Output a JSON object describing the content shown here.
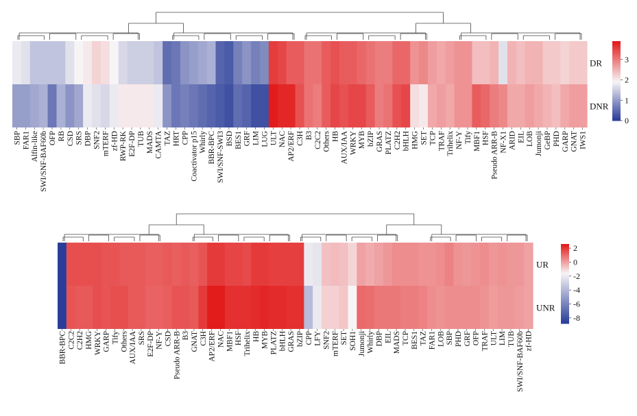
{
  "chart_data": [
    {
      "type": "heatmap",
      "rows": [
        "DR",
        "DNR"
      ],
      "categories": [
        "SBP",
        "FAR1",
        "Alfin-like",
        "SWI/SNF-BAF60b",
        "OFP",
        "RB",
        "CSD",
        "SRS",
        "DBP",
        "SNF2",
        "mTERF",
        "zf-HD",
        "RWP-RK",
        "E2F-DP",
        "TUB",
        "MADS",
        "CAMTA",
        "TAZ",
        "HRT",
        "CPP",
        "Coactivator p15",
        "Whirly",
        "BBR-BPC",
        "SWI/SNF-SWI3",
        "BSD",
        "BES1",
        "GRF",
        "LIM",
        "LUG",
        "ULT",
        "NAC",
        "AP2/ERF",
        "C3H",
        "B3",
        "C2C2",
        "Others",
        "HB",
        "AUX/IAA",
        "WRKY",
        "MYB",
        "bZIP",
        "GRAS",
        "PLATZ",
        "C2H2",
        "bHLH",
        "HMG",
        "SET",
        "TCP",
        "TRAF",
        "Trihelix",
        "NF-Y",
        "Tify",
        "MBF1",
        "HSF",
        "Pseudo ARR-B",
        "NF-X1",
        "ARID",
        "EIL",
        "LOB",
        "Jumonji",
        "GeBP",
        "PHD",
        "GARP",
        "GNAT",
        "IWS1"
      ],
      "series": [
        {
          "name": "DR",
          "values": [
            1.8,
            1.7,
            1.4,
            1.4,
            1.4,
            1.4,
            1.7,
            1.9,
            2.0,
            2.2,
            2.1,
            1.9,
            1.6,
            1.5,
            1.5,
            1.5,
            1.4,
            0.5,
            0.6,
            0.9,
            1.0,
            1.1,
            1.2,
            0.4,
            0.3,
            0.7,
            0.9,
            0.7,
            0.8,
            3.6,
            3.5,
            3.3,
            3.3,
            3.1,
            3.1,
            3.3,
            3.4,
            3.3,
            3.3,
            3.2,
            3.1,
            3.0,
            3.0,
            3.2,
            3.2,
            2.8,
            2.9,
            2.7,
            2.6,
            2.7,
            2.8,
            2.8,
            2.4,
            2.4,
            2.5,
            1.7,
            2.5,
            2.4,
            2.5,
            2.5,
            2.3,
            2.3,
            2.2,
            2.3,
            2.3
          ]
        },
        {
          "name": "DNR",
          "values": [
            1.0,
            1.0,
            1.1,
            1.2,
            0.6,
            1.2,
            0.9,
            1.1,
            1.8,
            1.7,
            1.6,
            1.8,
            2.0,
            2.0,
            2.0,
            2.0,
            1.8,
            0.9,
            0.6,
            0.7,
            0.6,
            0.5,
            0.4,
            0.3,
            0.2,
            0.5,
            0.4,
            0.2,
            0.2,
            3.9,
            3.8,
            3.8,
            3.4,
            3.1,
            3.0,
            3.3,
            3.5,
            3.4,
            3.5,
            3.5,
            3.3,
            3.0,
            3.1,
            3.4,
            3.5,
            2.1,
            2.0,
            2.6,
            2.7,
            2.6,
            2.8,
            2.8,
            3.3,
            3.2,
            3.0,
            2.9,
            2.6,
            2.6,
            2.7,
            2.6,
            2.5,
            2.4,
            2.6,
            2.7,
            2.7
          ]
        }
      ],
      "colorbar": {
        "ticks": [
          0,
          1,
          2,
          3
        ],
        "range": [
          0,
          3.9
        ]
      },
      "colors": {
        "low": "#2a3e99",
        "mid": "#f7f4f6",
        "high": "#e21b1b"
      }
    },
    {
      "type": "heatmap",
      "rows": [
        "UR",
        "UNR"
      ],
      "categories": [
        "BBR-BPC",
        "C2C2",
        "C2H2",
        "HMG",
        "WRKY",
        "GARP",
        "Tify",
        "Others",
        "AUX/IAA",
        "SRS",
        "E2F-DP",
        "NF-Y",
        "CSD",
        "Pseudo ARR-B",
        "B3",
        "GNAT",
        "C3H",
        "AP2/ERF",
        "NAC",
        "MBF1",
        "HSF",
        "Trihelix",
        "HB",
        "MYB",
        "PLATZ",
        "bHLH",
        "GRAS",
        "bZIP",
        "CPP",
        "LFY",
        "SNF2",
        "mTERF",
        "SET",
        "SOH1",
        "Jumonji",
        "Whirly",
        "DBP",
        "EIL",
        "MADS",
        "TCP",
        "BES1",
        "TAZ",
        "FAR1",
        "LOB",
        "SBP",
        "PHD",
        "GRF",
        "OFP",
        "TRAF",
        "ULT",
        "LIM",
        "TUB",
        "SWI/SNF-BAF60b",
        "zf-HD"
      ],
      "series": [
        {
          "name": "UR",
          "values": [
            -8.8,
            1.6,
            1.6,
            1.6,
            1.6,
            1.5,
            1.5,
            1.4,
            1.4,
            1.4,
            1.3,
            1.3,
            1.4,
            1.3,
            1.4,
            1.3,
            1.5,
            2.0,
            2.0,
            1.8,
            1.8,
            1.7,
            2.0,
            2.0,
            1.9,
            1.9,
            1.9,
            1.9,
            -2.0,
            -2.2,
            -0.6,
            -0.5,
            -0.6,
            -1.0,
            0.0,
            -0.2,
            0.0,
            0.2,
            0.4,
            0.4,
            0.4,
            0.3,
            0.3,
            0.4,
            0.6,
            0.3,
            0.2,
            0.3,
            0.4,
            0.2,
            0.3,
            0.2,
            0.2,
            0.0
          ]
        },
        {
          "name": "UNR",
          "values": [
            -8.8,
            1.5,
            1.4,
            1.4,
            1.6,
            1.5,
            1.6,
            1.6,
            1.4,
            1.4,
            1.2,
            1.2,
            1.3,
            1.5,
            1.5,
            1.4,
            2.0,
            2.6,
            2.6,
            2.2,
            2.2,
            2.2,
            2.3,
            2.4,
            2.3,
            2.3,
            2.2,
            2.2,
            -3.8,
            -2.0,
            -0.9,
            -0.9,
            -0.7,
            -1.6,
            1.1,
            1.0,
            0.8,
            0.8,
            0.8,
            0.7,
            0.7,
            0.6,
            0.4,
            0.3,
            0.4,
            0.4,
            0.4,
            0.4,
            0.3,
            0.1,
            0.2,
            0.2,
            0.1,
            0.0
          ]
        }
      ],
      "colorbar": {
        "ticks": [
          2,
          0,
          -2,
          -4,
          -6,
          -8
        ],
        "range": [
          -8.8,
          2.6
        ]
      },
      "colors": {
        "low": "#2a3e99",
        "mid": "#f7f4f6",
        "high": "#e21b1b"
      }
    }
  ]
}
